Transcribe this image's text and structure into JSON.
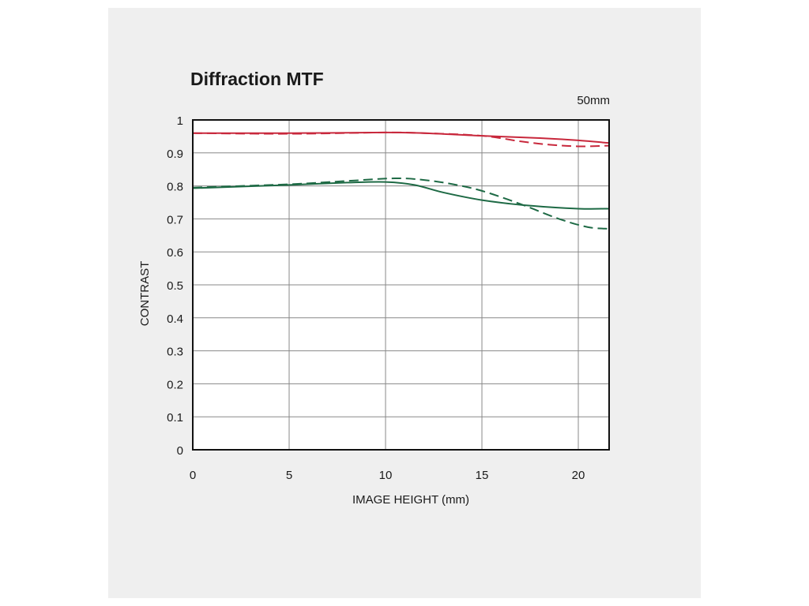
{
  "chart_data": {
    "type": "line",
    "title": "Diffraction MTF",
    "subtitle": "50mm",
    "xlabel": "IMAGE HEIGHT (mm)",
    "ylabel": "CONTRAST",
    "xlim": [
      0,
      21.6
    ],
    "ylim": [
      0,
      1
    ],
    "grid": true,
    "xticks": [
      "0",
      "5",
      "10",
      "15",
      "20"
    ],
    "yticks": [
      "0",
      "0.1",
      "0.2",
      "0.3",
      "0.4",
      "0.5",
      "0.6",
      "0.7",
      "0.8",
      "0.9",
      "1"
    ],
    "series": [
      {
        "color": "#c8283c",
        "style": "solid",
        "x": [
          0,
          5,
          10,
          12,
          15,
          18,
          20,
          21.6
        ],
        "y": [
          0.96,
          0.96,
          0.962,
          0.96,
          0.952,
          0.945,
          0.938,
          0.93
        ]
      },
      {
        "color": "#c8283c",
        "style": "dashed",
        "x": [
          0,
          5,
          10,
          12,
          15,
          17,
          18.5,
          20,
          21.6
        ],
        "y": [
          0.96,
          0.958,
          0.962,
          0.96,
          0.952,
          0.935,
          0.925,
          0.92,
          0.922
        ]
      },
      {
        "color": "#1e6a45",
        "style": "solid",
        "x": [
          0,
          5,
          8,
          10,
          11.5,
          13,
          15,
          17.5,
          20,
          21.6
        ],
        "y": [
          0.793,
          0.803,
          0.81,
          0.812,
          0.803,
          0.78,
          0.757,
          0.74,
          0.731,
          0.731
        ]
      },
      {
        "color": "#1e6a45",
        "style": "dashed",
        "x": [
          0,
          5,
          8,
          10.5,
          12,
          13.5,
          15,
          17,
          19,
          20.5,
          21.6
        ],
        "y": [
          0.795,
          0.805,
          0.815,
          0.823,
          0.818,
          0.805,
          0.785,
          0.745,
          0.7,
          0.675,
          0.67
        ]
      }
    ]
  }
}
